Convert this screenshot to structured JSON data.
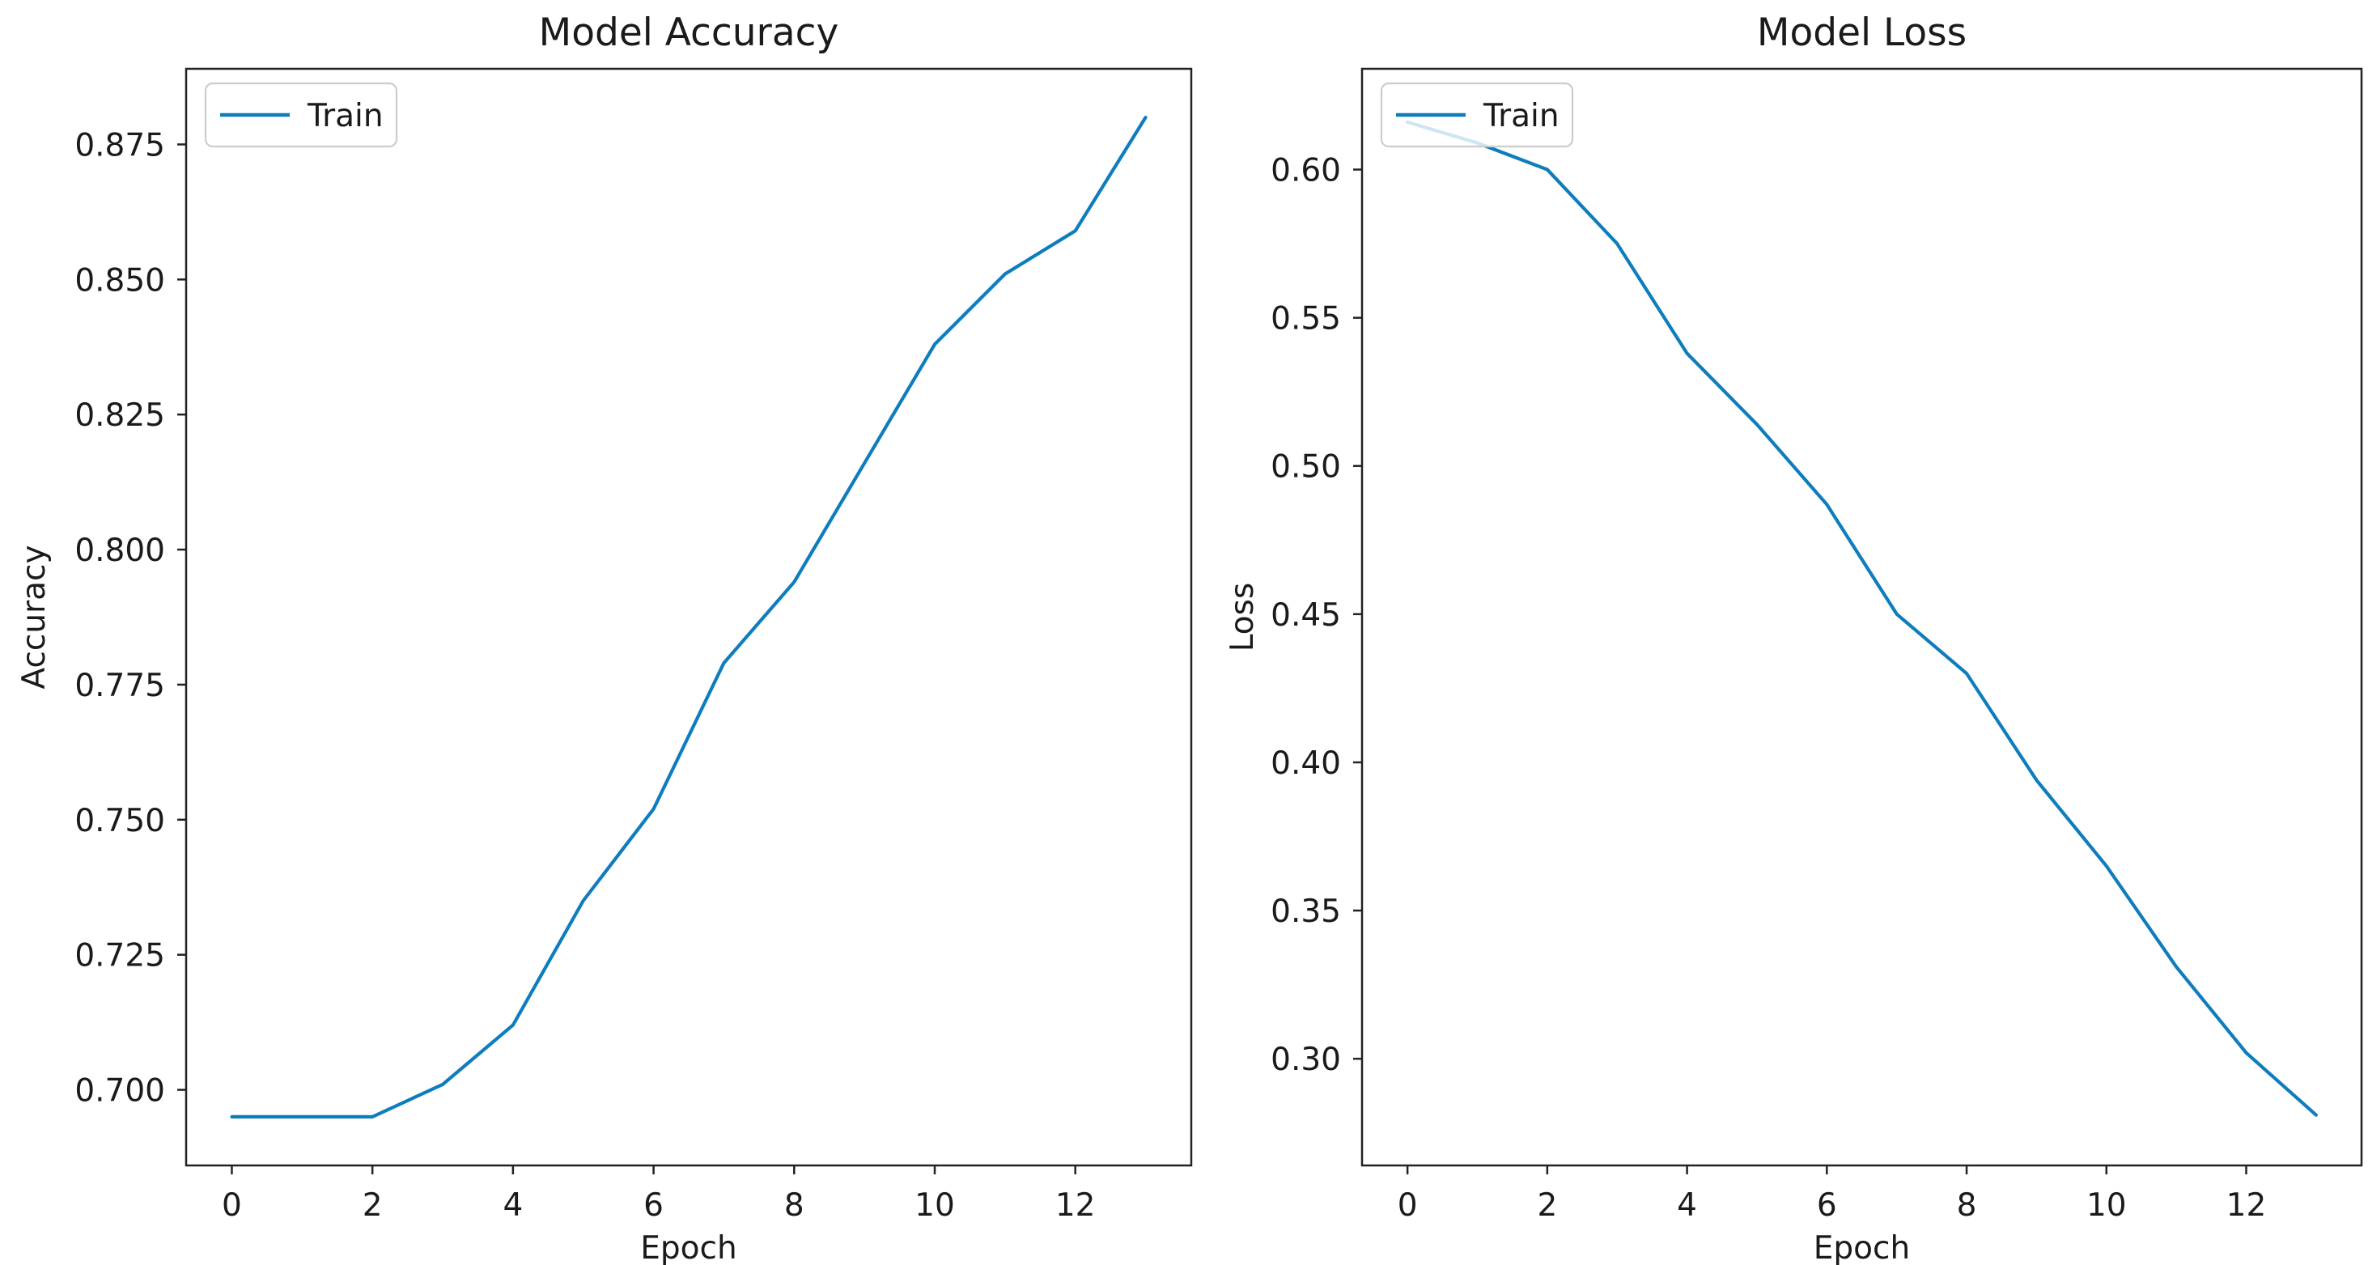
{
  "figure": {
    "background": "#ffffff",
    "description": "Two line charts side by side showing training history"
  },
  "colors": {
    "line": "#0e7dbe",
    "text": "#1a1a1a",
    "frame": "#222222",
    "legend_border": "#cccccc",
    "legend_fill_alpha": 0.8,
    "background": "#ffffff"
  },
  "chart_data": [
    {
      "type": "line",
      "title": "Model Accuracy",
      "xlabel": "Epoch",
      "ylabel": "Accuracy",
      "legend": {
        "label": "Train",
        "location": "upper left",
        "frame_alpha": 0.8
      },
      "grid": false,
      "x": [
        0,
        1,
        2,
        3,
        4,
        5,
        6,
        7,
        8,
        9,
        10,
        11,
        12,
        13
      ],
      "series": [
        {
          "name": "Train",
          "values": [
            0.695,
            0.695,
            0.695,
            0.701,
            0.712,
            0.735,
            0.752,
            0.779,
            0.794,
            0.816,
            0.838,
            0.851,
            0.859,
            0.88
          ]
        }
      ],
      "xlim": [
        -0.65,
        13.65
      ],
      "ylim": [
        0.686,
        0.889
      ],
      "xticks": {
        "values": [
          0,
          2,
          4,
          6,
          8,
          10,
          12
        ],
        "labels": [
          "0",
          "2",
          "4",
          "6",
          "8",
          "10",
          "12"
        ]
      },
      "yticks": {
        "values": [
          0.7,
          0.725,
          0.75,
          0.775,
          0.8,
          0.825,
          0.85,
          0.875
        ],
        "labels": [
          "0.700",
          "0.725",
          "0.750",
          "0.775",
          "0.800",
          "0.825",
          "0.850",
          "0.875"
        ]
      }
    },
    {
      "type": "line",
      "title": "Model Loss",
      "xlabel": "Epoch",
      "ylabel": "Loss",
      "legend": {
        "label": "Train",
        "location": "upper left",
        "frame_alpha": 0.8
      },
      "grid": false,
      "x": [
        0,
        1,
        2,
        3,
        4,
        5,
        6,
        7,
        8,
        9,
        10,
        11,
        12,
        13
      ],
      "series": [
        {
          "name": "Train",
          "values": [
            0.616,
            0.609,
            0.6,
            0.575,
            0.538,
            0.514,
            0.487,
            0.45,
            0.43,
            0.394,
            0.365,
            0.331,
            0.302,
            0.281
          ]
        }
      ],
      "xlim": [
        -0.65,
        13.65
      ],
      "ylim": [
        0.264,
        0.634
      ],
      "xticks": {
        "values": [
          0,
          2,
          4,
          6,
          8,
          10,
          12
        ],
        "labels": [
          "0",
          "2",
          "4",
          "6",
          "8",
          "10",
          "12"
        ]
      },
      "yticks": {
        "values": [
          0.3,
          0.35,
          0.4,
          0.45,
          0.5,
          0.55,
          0.6
        ],
        "labels": [
          "0.30",
          "0.35",
          "0.40",
          "0.45",
          "0.50",
          "0.55",
          "0.60"
        ]
      }
    }
  ]
}
